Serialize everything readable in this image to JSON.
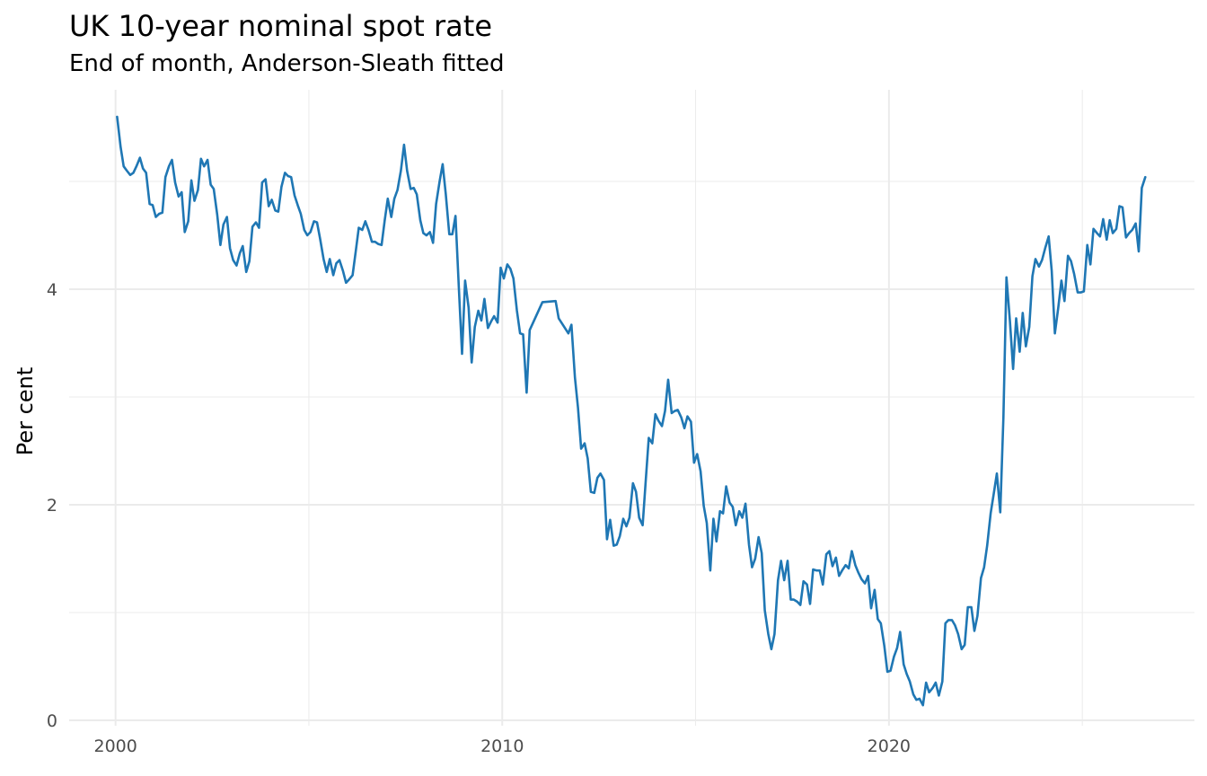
{
  "chart_data": {
    "type": "line",
    "title": "UK 10-year nominal spot rate",
    "subtitle": "End of month, Anderson-Sleath fitted",
    "xlabel": "",
    "ylabel": "Per cent",
    "x_ticks": [
      "2000",
      "2010",
      "2020"
    ],
    "y_ticks": [
      "0",
      "2",
      "4"
    ],
    "xlim": [
      1998.8,
      2027.9
    ],
    "ylim": [
      -0.05,
      5.85
    ],
    "grid": true,
    "line_color": "#1f77b4",
    "series": [
      {
        "x": [
          2000.04,
          2000.13,
          2000.21,
          2000.29,
          2000.38,
          2000.46,
          2000.54,
          2000.63,
          2000.71,
          2000.79,
          2000.88,
          2000.96,
          2001.04,
          2001.13,
          2001.21,
          2001.29,
          2001.38,
          2001.46,
          2001.54,
          2001.63,
          2001.71,
          2001.79,
          2001.88,
          2001.96,
          2002.04,
          2002.13,
          2002.21,
          2002.29,
          2002.38,
          2002.46,
          2002.54,
          2002.63,
          2002.71,
          2002.79,
          2002.88,
          2002.96,
          2003.04,
          2003.13,
          2003.21,
          2003.29,
          2003.38,
          2003.46,
          2003.54,
          2003.63,
          2003.71,
          2003.79,
          2003.88,
          2003.96,
          2004.04,
          2004.13,
          2004.21,
          2004.29,
          2004.38,
          2004.46,
          2004.54,
          2004.63,
          2004.71,
          2004.79,
          2004.88,
          2004.96,
          2005.04,
          2005.13,
          2005.21,
          2005.29,
          2005.38,
          2005.46,
          2005.54,
          2005.63,
          2005.71,
          2005.79,
          2005.88,
          2005.96,
          2006.04,
          2006.13,
          2006.21,
          2006.29,
          2006.38,
          2006.46,
          2006.54,
          2006.63,
          2006.71,
          2006.79,
          2006.88,
          2006.96,
          2007.04,
          2007.13,
          2007.21,
          2007.29,
          2007.38,
          2007.46,
          2007.54,
          2007.63,
          2007.71,
          2007.79,
          2007.88,
          2007.96,
          2008.04,
          2008.13,
          2008.21,
          2008.29,
          2008.38,
          2008.46,
          2008.54,
          2008.63,
          2008.71,
          2008.79,
          2008.88,
          2008.96,
          2009.04,
          2009.13,
          2009.21,
          2009.29,
          2009.38,
          2009.46,
          2009.54,
          2009.63,
          2009.71,
          2009.79,
          2009.88,
          2009.96,
          2010.04,
          2010.13,
          2010.21,
          2010.29,
          2010.38,
          2010.46,
          2010.54,
          2010.63,
          2010.71,
          2011.04,
          2011.38,
          2011.46,
          2011.71,
          2011.79,
          2011.88,
          2011.96,
          2012.04,
          2012.13,
          2012.21,
          2012.29,
          2012.38,
          2012.46,
          2012.54,
          2012.63,
          2012.71,
          2012.79,
          2012.88,
          2012.96,
          2013.04,
          2013.13,
          2013.21,
          2013.29,
          2013.38,
          2013.46,
          2013.54,
          2013.63,
          2013.71,
          2013.79,
          2013.88,
          2013.96,
          2014.04,
          2014.13,
          2014.21,
          2014.29,
          2014.38,
          2014.46,
          2014.54,
          2014.63,
          2014.71,
          2014.79,
          2014.88,
          2014.96,
          2015.04,
          2015.13,
          2015.21,
          2015.29,
          2015.38,
          2015.46,
          2015.54,
          2015.63,
          2015.71,
          2015.79,
          2015.88,
          2015.96,
          2016.04,
          2016.13,
          2016.21,
          2016.29,
          2016.38,
          2016.46,
          2016.54,
          2016.63,
          2016.71,
          2016.79,
          2016.88,
          2016.96,
          2017.04,
          2017.13,
          2017.21,
          2017.29,
          2017.38,
          2017.46,
          2017.54,
          2017.63,
          2017.71,
          2017.79,
          2017.88,
          2017.96,
          2018.04,
          2018.13,
          2018.21,
          2018.29,
          2018.38,
          2018.46,
          2018.54,
          2018.63,
          2018.71,
          2018.79,
          2018.88,
          2018.96,
          2019.04,
          2019.13,
          2019.21,
          2019.29,
          2019.38,
          2019.46,
          2019.54,
          2019.63,
          2019.71,
          2019.79,
          2019.88,
          2019.96,
          2020.04,
          2020.13,
          2020.21,
          2020.29,
          2020.38,
          2020.46,
          2020.54,
          2020.63,
          2020.71,
          2020.79,
          2020.88,
          2020.96,
          2021.04,
          2021.13,
          2021.21,
          2021.29,
          2021.38,
          2021.46,
          2021.54,
          2021.63,
          2021.71,
          2021.79,
          2021.88,
          2021.96,
          2022.04,
          2022.13,
          2022.21,
          2022.29,
          2022.38,
          2022.46,
          2022.54,
          2022.63,
          2022.71,
          2022.79,
          2022.88,
          2022.96,
          2023.04,
          2023.13,
          2023.21,
          2023.29,
          2023.38,
          2023.46,
          2023.54,
          2023.63,
          2023.71,
          2023.79,
          2023.88,
          2023.96,
          2024.04,
          2024.13,
          2024.21,
          2024.29,
          2024.38,
          2024.46,
          2024.54,
          2024.63,
          2024.71,
          2024.79,
          2024.88,
          2024.96,
          2025.04,
          2025.13,
          2025.21,
          2025.29,
          2025.38,
          2025.46,
          2025.54,
          2025.63,
          2025.71,
          2025.79,
          2025.88,
          2025.96,
          2026.04,
          2026.13,
          2026.21,
          2026.29,
          2026.38,
          2026.46,
          2026.54,
          2026.63
        ],
        "values": [
          5.6,
          5.32,
          5.14,
          5.1,
          5.06,
          5.08,
          5.14,
          5.22,
          5.12,
          5.08,
          4.79,
          4.78,
          4.67,
          4.7,
          4.71,
          5.04,
          5.14,
          5.2,
          4.99,
          4.86,
          4.9,
          4.53,
          4.63,
          5.01,
          4.82,
          4.92,
          5.21,
          5.14,
          5.2,
          4.97,
          4.93,
          4.69,
          4.41,
          4.6,
          4.67,
          4.38,
          4.27,
          4.22,
          4.33,
          4.4,
          4.16,
          4.26,
          4.58,
          4.62,
          4.57,
          4.99,
          5.02,
          4.77,
          4.83,
          4.73,
          4.72,
          4.95,
          5.08,
          5.05,
          5.04,
          4.87,
          4.78,
          4.7,
          4.55,
          4.5,
          4.53,
          4.63,
          4.62,
          4.47,
          4.28,
          4.16,
          4.28,
          4.13,
          4.24,
          4.27,
          4.17,
          4.06,
          4.09,
          4.13,
          4.35,
          4.57,
          4.55,
          4.63,
          4.55,
          4.44,
          4.44,
          4.42,
          4.41,
          4.64,
          4.84,
          4.67,
          4.84,
          4.92,
          5.1,
          5.34,
          5.1,
          4.93,
          4.94,
          4.88,
          4.64,
          4.52,
          4.5,
          4.53,
          4.43,
          4.79,
          5.0,
          5.16,
          4.88,
          4.51,
          4.51,
          4.68,
          4.0,
          3.4,
          4.08,
          3.83,
          3.32,
          3.65,
          3.8,
          3.71,
          3.91,
          3.64,
          3.7,
          3.75,
          3.69,
          4.2,
          4.1,
          4.23,
          4.19,
          4.1,
          3.8,
          3.59,
          3.58,
          3.04,
          3.62,
          3.88,
          3.89,
          3.73,
          3.59,
          3.67,
          3.18,
          2.9,
          2.52,
          2.57,
          2.43,
          2.12,
          2.11,
          2.25,
          2.29,
          2.23,
          1.68,
          1.86,
          1.62,
          1.63,
          1.71,
          1.87,
          1.8,
          1.88,
          2.2,
          2.12,
          1.88,
          1.81,
          2.22,
          2.62,
          2.57,
          2.84,
          2.78,
          2.73,
          2.87,
          3.16,
          2.85,
          2.87,
          2.88,
          2.81,
          2.71,
          2.82,
          2.77,
          2.39,
          2.47,
          2.31,
          1.99,
          1.83,
          1.39,
          1.87,
          1.66,
          1.94,
          1.92,
          2.17,
          2.02,
          1.98,
          1.81,
          1.94,
          1.88,
          2.01,
          1.63,
          1.42,
          1.5,
          1.7,
          1.55,
          1.02,
          0.8,
          0.66,
          0.8,
          1.3,
          1.48,
          1.3,
          1.48,
          1.12,
          1.12,
          1.1,
          1.07,
          1.29,
          1.26,
          1.08,
          1.4,
          1.39,
          1.39,
          1.26,
          1.54,
          1.57,
          1.43,
          1.51,
          1.34,
          1.39,
          1.44,
          1.41,
          1.57,
          1.44,
          1.37,
          1.31,
          1.27,
          1.34,
          1.04,
          1.21,
          0.94,
          0.9,
          0.69,
          0.45,
          0.46,
          0.59,
          0.67,
          0.82,
          0.52,
          0.43,
          0.36,
          0.24,
          0.19,
          0.2,
          0.14,
          0.35,
          0.26,
          0.3,
          0.35,
          0.23,
          0.36,
          0.9,
          0.93,
          0.93,
          0.88,
          0.8,
          0.66,
          0.7,
          1.05,
          1.05,
          0.83,
          0.97,
          1.32,
          1.42,
          1.62,
          1.92,
          2.1,
          2.29,
          1.93,
          2.81,
          4.11,
          3.7,
          3.26,
          3.73,
          3.42,
          3.78,
          3.47,
          3.65,
          4.12,
          4.28,
          4.21,
          4.27,
          4.38,
          4.49,
          4.17,
          3.59,
          3.83,
          4.08,
          3.89,
          4.31,
          4.26,
          4.14,
          3.97,
          3.97,
          3.98,
          4.41,
          4.23,
          4.56,
          4.52,
          4.49,
          4.65,
          4.46,
          4.64,
          4.52,
          4.56,
          4.77,
          4.76,
          4.48,
          4.52,
          4.55,
          4.61,
          4.35,
          4.94,
          5.04
        ]
      }
    ]
  }
}
